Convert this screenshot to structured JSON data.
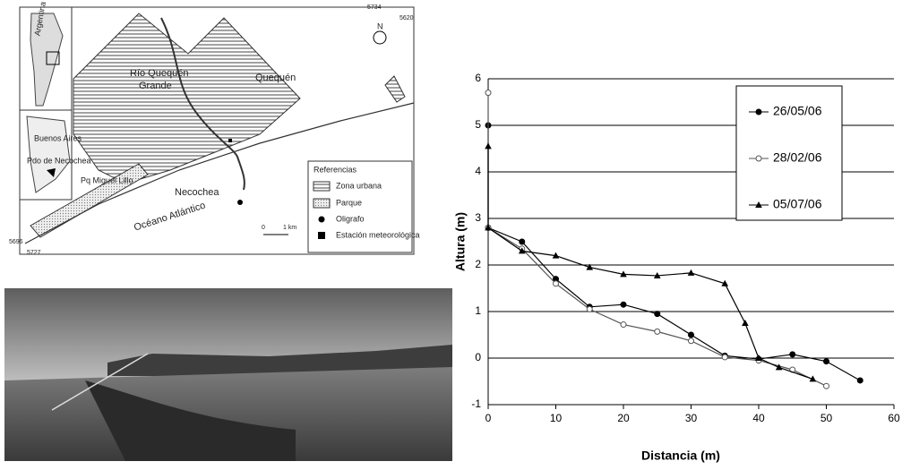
{
  "map": {
    "labels": [
      "Argentina",
      "Buenos Aires",
      "Pdo de Necochea",
      "Río Quequén",
      "Grande",
      "Quequén",
      "Pq Miguel Lillo",
      "Necochea",
      "Océano Atlántico",
      "N"
    ],
    "coords": [
      "5734",
      "5620",
      "5696",
      "5727"
    ],
    "scale": [
      "0",
      "1 km"
    ],
    "legend_title": "Referencias",
    "legend": [
      "Zona urbana",
      "Parque",
      "Oligrafo",
      "Estación meteorológica"
    ]
  },
  "chart_data": {
    "type": "line",
    "xlabel": "Distancia (m)",
    "ylabel": "Altura (m)",
    "xlim": [
      0,
      60
    ],
    "xticks": [
      0,
      10,
      20,
      30,
      40,
      50,
      60
    ],
    "ylim": [
      -1,
      6
    ],
    "yticks": [
      -1,
      0,
      1,
      2,
      3,
      4,
      5,
      6
    ],
    "grid": true,
    "series": [
      {
        "name": "26/05/06",
        "color": "#000000",
        "marker": "circle",
        "x": [
          0,
          0,
          5,
          10,
          15,
          20,
          25,
          30,
          35,
          40,
          45,
          50,
          55
        ],
        "values": [
          5.0,
          2.8,
          2.5,
          1.7,
          1.1,
          1.15,
          0.95,
          0.5,
          0.05,
          -0.02,
          0.08,
          -0.07,
          -0.48
        ]
      },
      {
        "name": "28/02/06",
        "color": "#555555",
        "marker": "open-circle",
        "x": [
          0,
          0,
          5,
          10,
          15,
          20,
          25,
          30,
          35,
          40,
          45,
          50
        ],
        "values": [
          5.7,
          2.8,
          2.35,
          1.6,
          1.05,
          0.72,
          0.57,
          0.37,
          0.02,
          -0.05,
          -0.25,
          -0.6
        ]
      },
      {
        "name": "05/07/06",
        "color": "#000000",
        "marker": "triangle",
        "x": [
          0,
          0,
          5,
          10,
          15,
          20,
          25,
          30,
          35,
          38,
          40,
          43,
          48
        ],
        "values": [
          4.55,
          2.8,
          2.3,
          2.2,
          1.95,
          1.8,
          1.77,
          1.83,
          1.6,
          0.75,
          0.0,
          -0.2,
          -0.45
        ]
      }
    ]
  }
}
